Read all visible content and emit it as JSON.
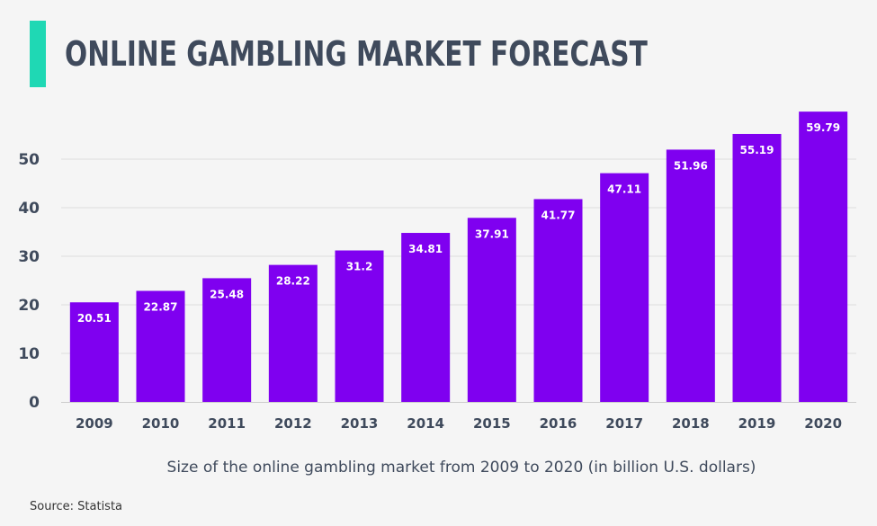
{
  "header": {
    "title": "ONLINE GAMBLING MARKET FORECAST"
  },
  "footer": {
    "source": "Source: Statista"
  },
  "colors": {
    "accent": "#1fd8b4",
    "bar": "#7f00f0",
    "axis_text": "#3f4a5c",
    "grid": "#dddddd"
  },
  "chart_data": {
    "type": "bar",
    "title": "ONLINE GAMBLING MARKET FORECAST",
    "xlabel": "Size of the online gambling market from 2009 to 2020 (in billion U.S. dollars)",
    "ylabel": "",
    "categories": [
      "2009",
      "2010",
      "2011",
      "2012",
      "2013",
      "2014",
      "2015",
      "2016",
      "2017",
      "2018",
      "2019",
      "2020"
    ],
    "values": [
      20.51,
      22.87,
      25.48,
      28.22,
      31.2,
      34.81,
      37.91,
      41.77,
      47.11,
      51.96,
      55.19,
      59.79
    ],
    "data_labels": [
      "20.51",
      "22.87",
      "25.48",
      "28.22",
      "31.2",
      "34.81",
      "37.91",
      "41.77",
      "47.11",
      "51.96",
      "55.19",
      "59.79"
    ],
    "yticks": [
      0,
      10,
      20,
      30,
      40,
      50
    ],
    "ylim": [
      0,
      62
    ],
    "grid": true,
    "legend": "none"
  }
}
